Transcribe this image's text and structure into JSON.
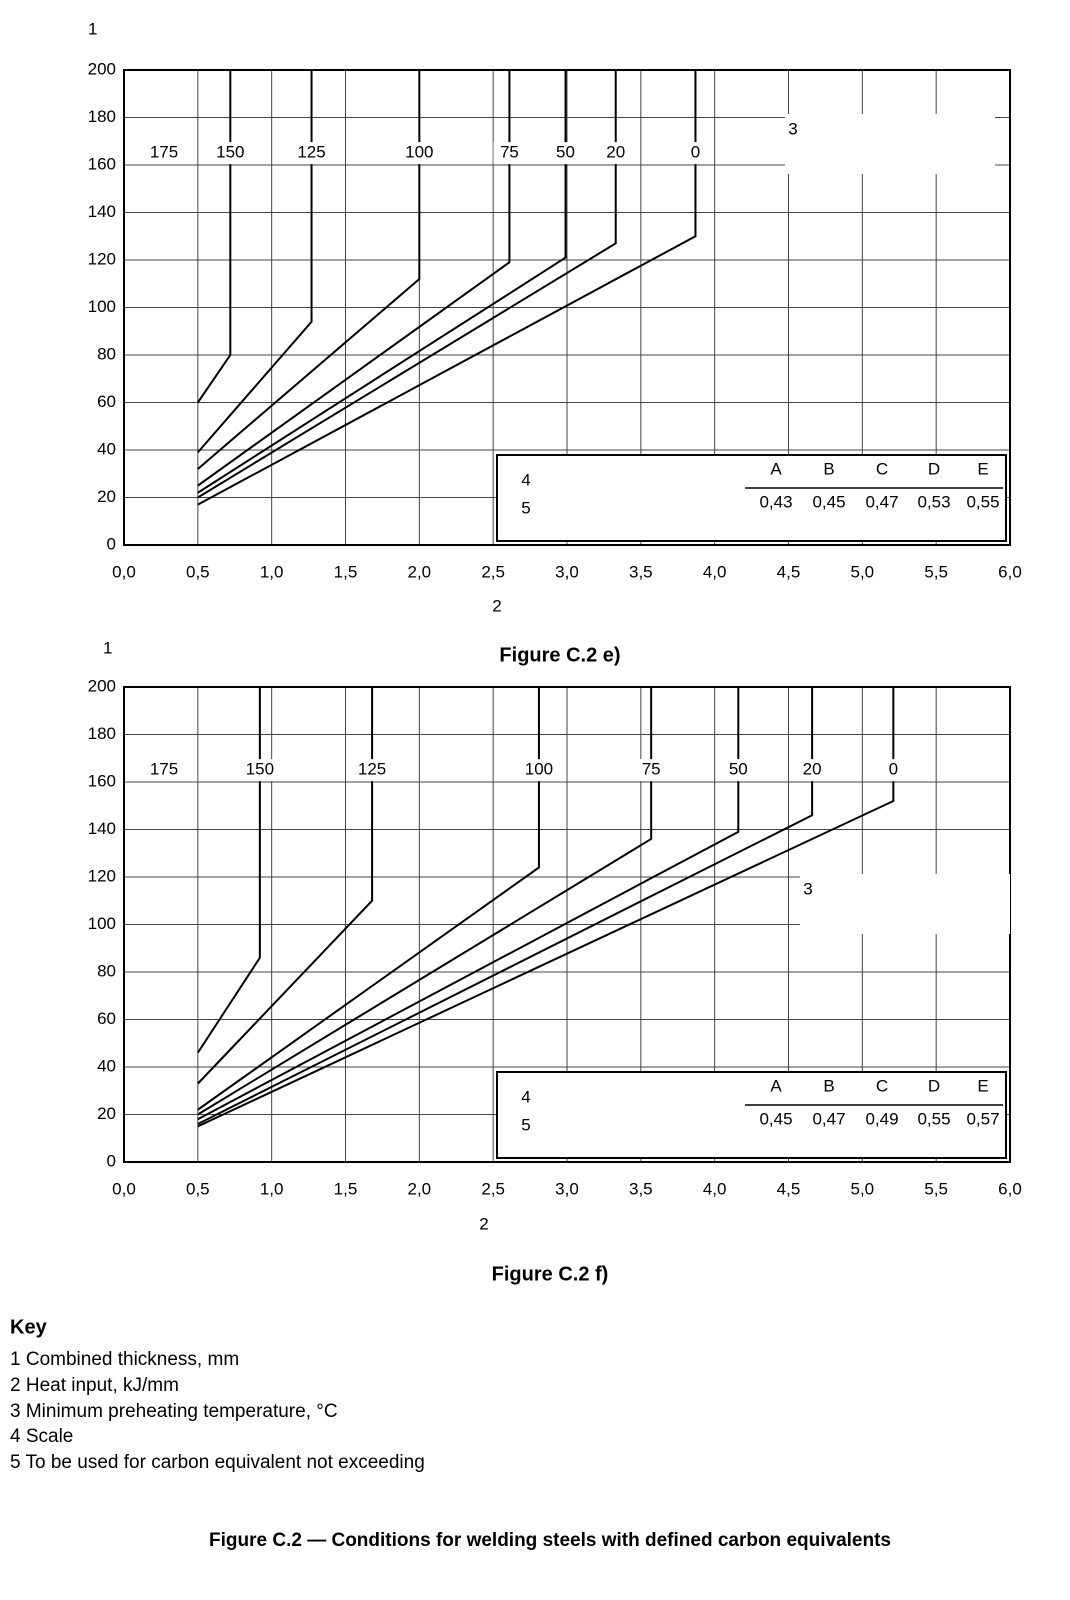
{
  "chart_data": [
    {
      "type": "line",
      "title": "Figure C.2 e)",
      "ylabel": "1",
      "xlabel": "2",
      "region_label": "175",
      "annotation": "3",
      "xlim": [
        0,
        6
      ],
      "ylim": [
        0,
        200
      ],
      "grid": true,
      "color": "#000000",
      "xticks": [
        {
          "value": 0,
          "label": "0,0"
        },
        {
          "value": 0.5,
          "label": "0,5"
        },
        {
          "value": 1,
          "label": "1,0"
        },
        {
          "value": 1.5,
          "label": "1,5"
        },
        {
          "value": 2,
          "label": "2,0"
        },
        {
          "value": 2.5,
          "label": "2,5"
        },
        {
          "value": 3,
          "label": "3,0"
        },
        {
          "value": 3.5,
          "label": "3,5"
        },
        {
          "value": 4,
          "label": "4,0"
        },
        {
          "value": 4.5,
          "label": "4,5"
        },
        {
          "value": 5,
          "label": "5,0"
        },
        {
          "value": 5.5,
          "label": "5,5"
        },
        {
          "value": 6,
          "label": "6,0"
        }
      ],
      "yticks": [
        0,
        20,
        40,
        60,
        80,
        100,
        120,
        140,
        160,
        180,
        200
      ],
      "series": [
        {
          "name": "150",
          "x": [
            0.5,
            0.72,
            0.72
          ],
          "values": [
            60,
            80,
            200
          ]
        },
        {
          "name": "125",
          "x": [
            0.5,
            1.27,
            1.27
          ],
          "values": [
            39,
            94,
            200
          ]
        },
        {
          "name": "100",
          "x": [
            0.5,
            2.0,
            2.0
          ],
          "values": [
            32,
            112,
            200
          ]
        },
        {
          "name": "75",
          "x": [
            0.5,
            2.61,
            2.61
          ],
          "values": [
            25,
            119,
            200
          ]
        },
        {
          "name": "50",
          "x": [
            0.5,
            2.99,
            2.99
          ],
          "values": [
            22,
            121,
            200
          ]
        },
        {
          "name": "20",
          "x": [
            0.5,
            3.33,
            3.33
          ],
          "values": [
            20,
            127,
            200
          ]
        },
        {
          "name": "0",
          "x": [
            0.5,
            3.87,
            3.87
          ],
          "values": [
            17,
            130,
            200
          ]
        }
      ],
      "scale": {
        "label": "4",
        "note": "5",
        "columns": [
          "A",
          "B",
          "C",
          "D",
          "E"
        ],
        "values": [
          {
            "value": 0.43,
            "label": "0,43"
          },
          {
            "value": 0.45,
            "label": "0,45"
          },
          {
            "value": 0.47,
            "label": "0,47"
          },
          {
            "value": 0.53,
            "label": "0,53"
          },
          {
            "value": 0.55,
            "label": "0,55"
          }
        ]
      }
    },
    {
      "type": "line",
      "title": "Figure C.2 f)",
      "ylabel": "1",
      "xlabel": "2",
      "region_label": "175",
      "annotation": "3",
      "xlim": [
        0,
        6
      ],
      "ylim": [
        0,
        200
      ],
      "grid": true,
      "color": "#000000",
      "xticks": [
        {
          "value": 0,
          "label": "0,0"
        },
        {
          "value": 0.5,
          "label": "0,5"
        },
        {
          "value": 1,
          "label": "1,0"
        },
        {
          "value": 1.5,
          "label": "1,5"
        },
        {
          "value": 2,
          "label": "2,0"
        },
        {
          "value": 2.5,
          "label": "2,5"
        },
        {
          "value": 3,
          "label": "3,0"
        },
        {
          "value": 3.5,
          "label": "3,5"
        },
        {
          "value": 4,
          "label": "4,0"
        },
        {
          "value": 4.5,
          "label": "4,5"
        },
        {
          "value": 5,
          "label": "5,0"
        },
        {
          "value": 5.5,
          "label": "5,5"
        },
        {
          "value": 6,
          "label": "6,0"
        }
      ],
      "yticks": [
        0,
        20,
        40,
        60,
        80,
        100,
        120,
        140,
        160,
        180,
        200
      ],
      "series": [
        {
          "name": "150",
          "x": [
            0.5,
            0.92,
            0.92
          ],
          "values": [
            46,
            86,
            200
          ]
        },
        {
          "name": "125",
          "x": [
            0.5,
            1.68,
            1.68
          ],
          "values": [
            33,
            110,
            200
          ]
        },
        {
          "name": "100",
          "x": [
            0.5,
            2.81,
            2.81
          ],
          "values": [
            22,
            124,
            200
          ]
        },
        {
          "name": "75",
          "x": [
            0.5,
            3.57,
            3.57
          ],
          "values": [
            20,
            136,
            200
          ]
        },
        {
          "name": "50",
          "x": [
            0.5,
            4.16,
            4.16
          ],
          "values": [
            18,
            139,
            200
          ]
        },
        {
          "name": "20",
          "x": [
            0.5,
            4.66,
            4.66
          ],
          "values": [
            16,
            146,
            200
          ]
        },
        {
          "name": "0",
          "x": [
            0.5,
            5.21,
            5.21
          ],
          "values": [
            15,
            152,
            200
          ]
        }
      ],
      "scale": {
        "label": "4",
        "note": "5",
        "columns": [
          "A",
          "B",
          "C",
          "D",
          "E"
        ],
        "values": [
          {
            "value": 0.45,
            "label": "0,45"
          },
          {
            "value": 0.47,
            "label": "0,47"
          },
          {
            "value": 0.49,
            "label": "0,49"
          },
          {
            "value": 0.55,
            "label": "0,55"
          },
          {
            "value": 0.57,
            "label": "0,57"
          }
        ]
      }
    }
  ],
  "key": {
    "title": "Key",
    "items": [
      "1 Combined thickness, mm",
      "2 Heat input, kJ/mm",
      "3 Minimum preheating temperature, °C",
      "4 Scale",
      "5 To be used for carbon equivalent not exceeding"
    ]
  },
  "caption": "Figure C.2 — Conditions for welding steels with defined carbon equivalents"
}
